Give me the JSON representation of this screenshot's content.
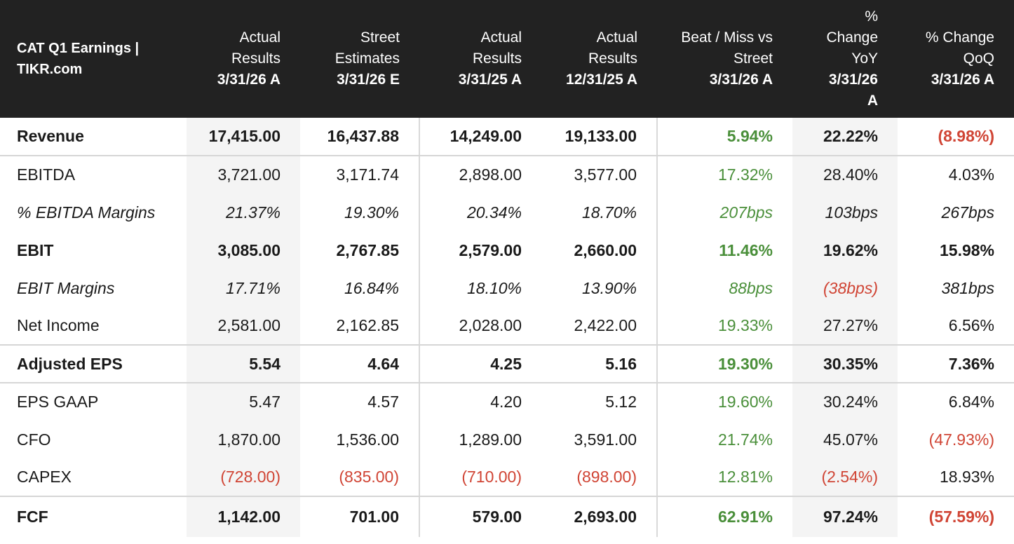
{
  "header": {
    "title_line1": "CAT Q1 Earnings |",
    "title_line2": "TIKR.com",
    "columns": [
      {
        "l1": "",
        "l2": "Actual",
        "l3": "Results",
        "date": "3/31/26 A",
        "date2": ""
      },
      {
        "l1": "",
        "l2": "Street",
        "l3": "Estimates",
        "date": "3/31/26 E",
        "date2": ""
      },
      {
        "l1": "",
        "l2": "Actual",
        "l3": "Results",
        "date": "3/31/25 A",
        "date2": ""
      },
      {
        "l1": "",
        "l2": "Actual",
        "l3": "Results",
        "date": "12/31/25 A",
        "date2": ""
      },
      {
        "l1": "",
        "l2": "Beat / Miss vs",
        "l3": "Street",
        "date": "3/31/26 A",
        "date2": ""
      },
      {
        "l1": "%",
        "l2": "Change",
        "l3": "YoY",
        "date": "3/31/26",
        "date2": "A"
      },
      {
        "l1": "",
        "l2": "% Change",
        "l3": "QoQ",
        "date": "3/31/26 A",
        "date2": ""
      }
    ]
  },
  "rows": [
    {
      "label": "Revenue",
      "style": "bold",
      "cells": [
        {
          "v": "17,415.00",
          "t": ""
        },
        {
          "v": "16,437.88",
          "t": ""
        },
        {
          "v": "14,249.00",
          "t": ""
        },
        {
          "v": "19,133.00",
          "t": ""
        },
        {
          "v": "5.94%",
          "t": "pos"
        },
        {
          "v": "22.22%",
          "t": ""
        },
        {
          "v": "(8.98%)",
          "t": "neg"
        }
      ]
    },
    {
      "label": "EBITDA",
      "style": "",
      "cells": [
        {
          "v": "3,721.00",
          "t": ""
        },
        {
          "v": "3,171.74",
          "t": ""
        },
        {
          "v": "2,898.00",
          "t": ""
        },
        {
          "v": "3,577.00",
          "t": ""
        },
        {
          "v": "17.32%",
          "t": "pos"
        },
        {
          "v": "28.40%",
          "t": ""
        },
        {
          "v": "4.03%",
          "t": ""
        }
      ]
    },
    {
      "label": "% EBITDA Margins",
      "style": "ital",
      "cells": [
        {
          "v": "21.37%",
          "t": ""
        },
        {
          "v": "19.30%",
          "t": ""
        },
        {
          "v": "20.34%",
          "t": ""
        },
        {
          "v": "18.70%",
          "t": ""
        },
        {
          "v": "207bps",
          "t": "pos"
        },
        {
          "v": "103bps",
          "t": ""
        },
        {
          "v": "267bps",
          "t": ""
        }
      ]
    },
    {
      "label": "EBIT",
      "style": "bold",
      "cells": [
        {
          "v": "3,085.00",
          "t": ""
        },
        {
          "v": "2,767.85",
          "t": ""
        },
        {
          "v": "2,579.00",
          "t": ""
        },
        {
          "v": "2,660.00",
          "t": ""
        },
        {
          "v": "11.46%",
          "t": "pos"
        },
        {
          "v": "19.62%",
          "t": ""
        },
        {
          "v": "15.98%",
          "t": ""
        }
      ]
    },
    {
      "label": "EBIT Margins",
      "style": "ital",
      "cells": [
        {
          "v": "17.71%",
          "t": ""
        },
        {
          "v": "16.84%",
          "t": ""
        },
        {
          "v": "18.10%",
          "t": ""
        },
        {
          "v": "13.90%",
          "t": ""
        },
        {
          "v": "88bps",
          "t": "pos"
        },
        {
          "v": "(38bps)",
          "t": "neg"
        },
        {
          "v": "381bps",
          "t": ""
        }
      ]
    },
    {
      "label": "Net Income",
      "style": "",
      "cells": [
        {
          "v": "2,581.00",
          "t": ""
        },
        {
          "v": "2,162.85",
          "t": ""
        },
        {
          "v": "2,028.00",
          "t": ""
        },
        {
          "v": "2,422.00",
          "t": ""
        },
        {
          "v": "19.33%",
          "t": "pos"
        },
        {
          "v": "27.27%",
          "t": ""
        },
        {
          "v": "6.56%",
          "t": ""
        }
      ]
    },
    {
      "label": "Adjusted EPS",
      "style": "bold",
      "cells": [
        {
          "v": "5.54",
          "t": ""
        },
        {
          "v": "4.64",
          "t": ""
        },
        {
          "v": "4.25",
          "t": ""
        },
        {
          "v": "5.16",
          "t": ""
        },
        {
          "v": "19.30%",
          "t": "pos"
        },
        {
          "v": "30.35%",
          "t": ""
        },
        {
          "v": "7.36%",
          "t": ""
        }
      ]
    },
    {
      "label": "EPS GAAP",
      "style": "",
      "cells": [
        {
          "v": "5.47",
          "t": ""
        },
        {
          "v": "4.57",
          "t": ""
        },
        {
          "v": "4.20",
          "t": ""
        },
        {
          "v": "5.12",
          "t": ""
        },
        {
          "v": "19.60%",
          "t": "pos"
        },
        {
          "v": "30.24%",
          "t": ""
        },
        {
          "v": "6.84%",
          "t": ""
        }
      ]
    },
    {
      "label": "CFO",
      "style": "",
      "cells": [
        {
          "v": "1,870.00",
          "t": ""
        },
        {
          "v": "1,536.00",
          "t": ""
        },
        {
          "v": "1,289.00",
          "t": ""
        },
        {
          "v": "3,591.00",
          "t": ""
        },
        {
          "v": "21.74%",
          "t": "pos"
        },
        {
          "v": "45.07%",
          "t": ""
        },
        {
          "v": "(47.93%)",
          "t": "neg"
        }
      ]
    },
    {
      "label": "CAPEX",
      "style": "",
      "cells": [
        {
          "v": "(728.00)",
          "t": "neg"
        },
        {
          "v": "(835.00)",
          "t": "neg"
        },
        {
          "v": "(710.00)",
          "t": "neg"
        },
        {
          "v": "(898.00)",
          "t": "neg"
        },
        {
          "v": "12.81%",
          "t": "pos"
        },
        {
          "v": "(2.54%)",
          "t": "neg"
        },
        {
          "v": "18.93%",
          "t": ""
        }
      ]
    },
    {
      "label": "FCF",
      "style": "bold",
      "cells": [
        {
          "v": "1,142.00",
          "t": ""
        },
        {
          "v": "701.00",
          "t": ""
        },
        {
          "v": "579.00",
          "t": ""
        },
        {
          "v": "2,693.00",
          "t": ""
        },
        {
          "v": "62.91%",
          "t": "pos"
        },
        {
          "v": "97.24%",
          "t": ""
        },
        {
          "v": "(57.59%)",
          "t": "neg"
        }
      ]
    }
  ],
  "colors": {
    "header_bg": "#222222",
    "positive": "#4a8f3a",
    "negative": "#d04434",
    "shade": "#f4f4f4"
  }
}
